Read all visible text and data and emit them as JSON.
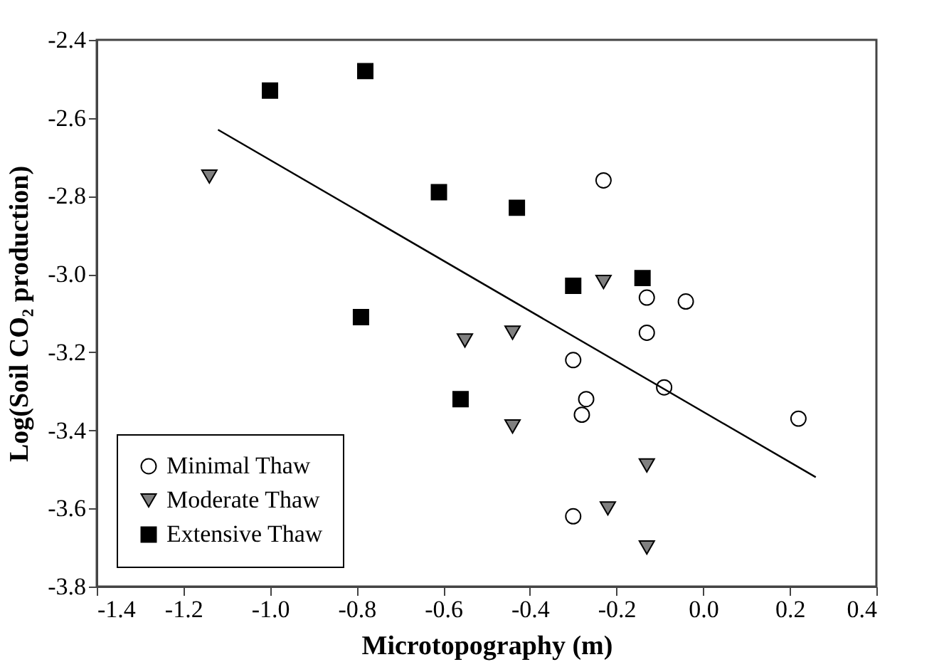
{
  "chart_data": {
    "type": "scatter",
    "xlabel": "Microtopography (m)",
    "ylabel": "Log(Soil CO₂ production)",
    "xlim": [
      -1.4,
      0.4
    ],
    "xticks": [
      {
        "value": -1.4,
        "label": "-1.4"
      },
      {
        "value": -1.2,
        "label": "-1.2"
      },
      {
        "value": -1.0,
        "label": "-1.0"
      },
      {
        "value": -0.8,
        "label": "-0.8"
      },
      {
        "value": -0.6,
        "label": "-0.6"
      },
      {
        "value": -0.4,
        "label": "-0.4"
      },
      {
        "value": -0.2,
        "label": "-0.2"
      },
      {
        "value": 0,
        "label": "0.0"
      },
      {
        "value": 0.2,
        "label": "0.2"
      },
      {
        "value": 0.4,
        "label": "0.4"
      }
    ],
    "ylim": [
      -3.8,
      -2.4
    ],
    "yticks": [
      {
        "value": -3.8,
        "label": "-3.8"
      },
      {
        "value": -3.6,
        "label": "-3.6"
      },
      {
        "value": -3.4,
        "label": "-3.4"
      },
      {
        "value": -3.2,
        "label": "-3.2"
      },
      {
        "value": -3.0,
        "label": "-3.0"
      },
      {
        "value": -2.8,
        "label": "-2.8"
      },
      {
        "value": -2.6,
        "label": "-2.6"
      },
      {
        "value": -2.4,
        "label": "-2.4"
      }
    ],
    "grid": false,
    "legend": "bottom left",
    "series": [
      {
        "name": "Minimal Thaw",
        "type": "scatter",
        "marker": "circle",
        "color": "#ffffff",
        "x": [
          -0.23,
          -0.13,
          -0.04,
          -0.13,
          -0.3,
          -0.27,
          -0.28,
          -0.09,
          0.22,
          -0.3
        ],
        "values": [
          -2.76,
          -3.06,
          -3.07,
          -3.15,
          -3.22,
          -3.32,
          -3.36,
          -3.29,
          -3.37,
          -3.62
        ]
      },
      {
        "name": "Moderate Thaw",
        "type": "scatter",
        "marker": "triangle",
        "color": "#808080",
        "x": [
          -1.14,
          -0.23,
          -0.55,
          -0.44,
          -0.44,
          -0.13,
          -0.22,
          -0.13
        ],
        "values": [
          -2.75,
          -3.02,
          -3.17,
          -3.15,
          -3.39,
          -3.49,
          -3.6,
          -3.7
        ]
      },
      {
        "name": "Extensive Thaw",
        "type": "scatter",
        "marker": "square",
        "color": "#000000",
        "x": [
          -1.0,
          -0.78,
          -0.61,
          -0.43,
          -0.3,
          -0.14,
          -0.79,
          -0.56
        ],
        "values": [
          -2.53,
          -2.48,
          -2.79,
          -2.83,
          -3.03,
          -3.01,
          -3.11,
          -3.32
        ]
      },
      {
        "type": "line",
        "color": "#000000",
        "x": [
          -1.12,
          0.26
        ],
        "values": [
          -2.63,
          -3.52
        ]
      }
    ]
  }
}
